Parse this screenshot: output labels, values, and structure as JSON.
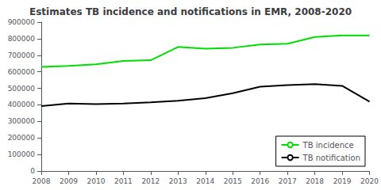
{
  "chart_data": {
    "type": "line",
    "title": "Estimates TB incidence and notifications in EMR, 2008-2020",
    "x": [
      2008,
      2009,
      2010,
      2011,
      2012,
      2013,
      2014,
      2015,
      2016,
      2017,
      2018,
      2019,
      2020
    ],
    "series": [
      {
        "name": "TB incidence",
        "color": "#00dd00",
        "values": [
          630000,
          635000,
          645000,
          665000,
          670000,
          750000,
          740000,
          745000,
          765000,
          770000,
          810000,
          820000,
          820000
        ]
      },
      {
        "name": "TB notification",
        "color": "#000000",
        "values": [
          392000,
          408000,
          405000,
          408000,
          415000,
          425000,
          440000,
          470000,
          510000,
          520000,
          525000,
          515000,
          420000
        ]
      }
    ],
    "xlim": [
      2008,
      2020
    ],
    "xticks": [
      2008,
      2009,
      2010,
      2011,
      2012,
      2013,
      2014,
      2015,
      2016,
      2017,
      2018,
      2019,
      2020
    ],
    "ylim": [
      0,
      900000
    ],
    "yticks": [
      0,
      100000,
      200000,
      300000,
      400000,
      500000,
      600000,
      700000,
      800000,
      900000
    ],
    "grid": false,
    "legend": "lower right"
  }
}
